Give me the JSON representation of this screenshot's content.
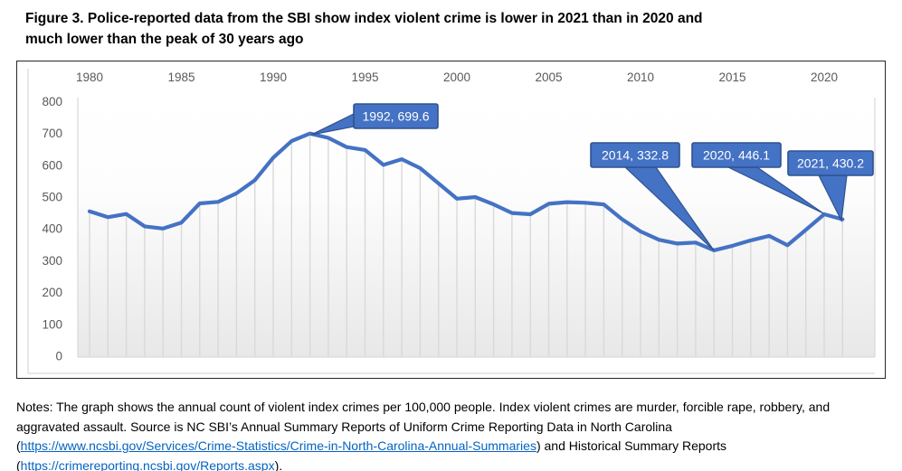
{
  "title_lines": [
    "Figure 3. Police-reported data from the SBI show index violent crime is lower in 2021 than in 2020 and",
    "much lower than the peak of 30 years ago"
  ],
  "chart_data": {
    "type": "line",
    "series_name": "Index violent crimes per 100,000 people",
    "x": [
      1980,
      1981,
      1982,
      1983,
      1984,
      1985,
      1986,
      1987,
      1988,
      1989,
      1990,
      1991,
      1992,
      1993,
      1994,
      1995,
      1996,
      1997,
      1998,
      1999,
      2000,
      2001,
      2002,
      2003,
      2004,
      2005,
      2006,
      2007,
      2008,
      2009,
      2010,
      2011,
      2012,
      2013,
      2014,
      2015,
      2016,
      2017,
      2018,
      2019,
      2020,
      2021
    ],
    "values": [
      455,
      437,
      447,
      408,
      401,
      420,
      480,
      485,
      512,
      553,
      624,
      676,
      699.6,
      686,
      657,
      648,
      601,
      619,
      591,
      543,
      495,
      500,
      477,
      450,
      446,
      479,
      484,
      482,
      477,
      430,
      392,
      366,
      354,
      357,
      332.8,
      347,
      364,
      378,
      349,
      397,
      446.1,
      430.2
    ],
    "x_tick_labels": [
      "1980",
      "1985",
      "1990",
      "1995",
      "2000",
      "2005",
      "2010",
      "2015",
      "2020"
    ],
    "y_ticks": [
      0,
      100,
      200,
      300,
      400,
      500,
      600,
      700,
      800
    ],
    "ylim": [
      0,
      800
    ],
    "grid": "droplines",
    "legend": "none",
    "callouts": [
      {
        "year": 1992,
        "value": 699.6,
        "label": "1992, 699.6"
      },
      {
        "year": 2014,
        "value": 332.8,
        "label": "2014, 332.8"
      },
      {
        "year": 2020,
        "value": 446.1,
        "label": "2020, 446.1"
      },
      {
        "year": 2021,
        "value": 430.2,
        "label": "2021, 430.2"
      }
    ],
    "colors": {
      "line": "#4472C4",
      "callout_fill": "#4472C4",
      "callout_border": "#2F528F",
      "callout_text": "#FFFFFF",
      "dropline": "#D9D9D9",
      "axis_line": "#D9D9D9",
      "axis_text": "#595959",
      "plot_bottom_fill": "#E8E8E8",
      "frame_border": "#262626"
    }
  },
  "notes": {
    "segments": [
      {
        "text": "Notes: The graph shows the annual count of violent index crimes per 100,000 people. Index violent crimes are murder, forcible rape, robbery, and aggravated assault. Source is NC SBI’s Annual Summary Reports of Uniform Crime Reporting Data in North Carolina ("
      },
      {
        "link": "https://www.ncsbi.gov/Services/Crime-Statistics/Crime-in-North-Carolina-Annual-Summaries"
      },
      {
        "text": ") and Historical Summary Reports ("
      },
      {
        "link": "https://crimereporting.ncsbi.gov/Reports.aspx"
      },
      {
        "text": ")."
      }
    ]
  }
}
